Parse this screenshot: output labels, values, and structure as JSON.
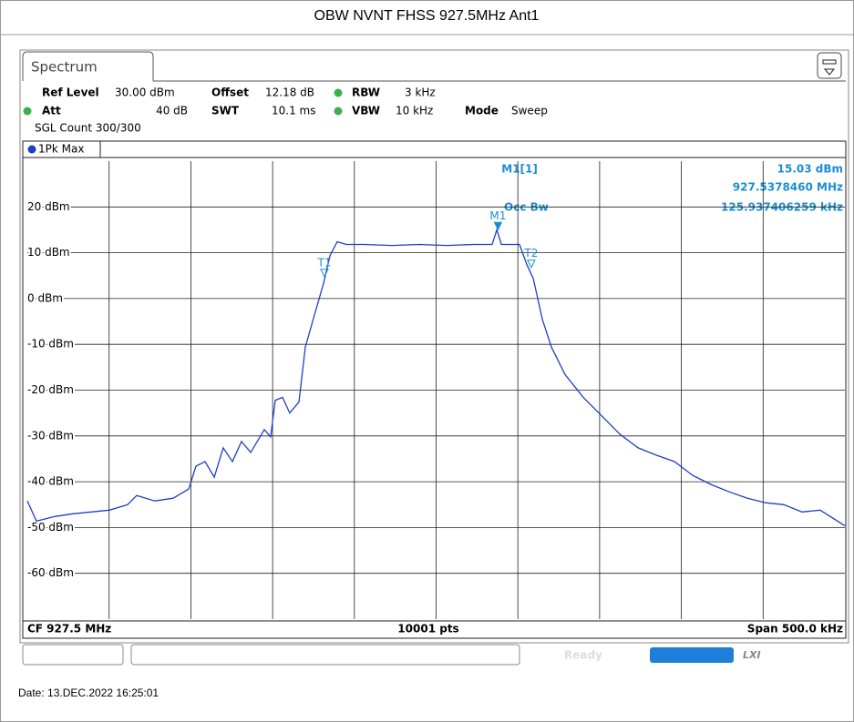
{
  "header": {
    "title": "OBW NVNT FHSS 927.5MHz Ant1"
  },
  "tab": "Spectrum",
  "settings": {
    "ref_level_label": "Ref Level",
    "ref_level": "30.00 dBm",
    "offset_label": "Offset",
    "offset": "12.18 dB",
    "rbw_label": "RBW",
    "rbw": "3 kHz",
    "att_label": "Att",
    "att": "40 dB",
    "swt_label": "SWT",
    "swt": "10.1 ms",
    "vbw_label": "VBW",
    "vbw": "10 kHz",
    "mode_label": "Mode",
    "mode": "Sweep",
    "count": "SGL Count 300/300"
  },
  "trace_label": "1Pk Max",
  "readout": {
    "marker": "M1[1]",
    "level": "15.03 dBm",
    "frequency": "927.5378460 MHz",
    "occ_label": "Occ Bw",
    "occ": "125.937406259 kHz"
  },
  "chart_data": {
    "type": "line",
    "xlim": [
      927.25,
      927.75
    ],
    "ylim": [
      -70,
      30
    ],
    "yticks": [
      {
        "value": 20,
        "label": "20 dBm"
      },
      {
        "value": 10,
        "label": "10 dBm"
      },
      {
        "value": 0,
        "label": "0 dBm"
      },
      {
        "value": -10,
        "label": "-10 dBm"
      },
      {
        "value": -20,
        "label": "-20 dBm"
      },
      {
        "value": -30,
        "label": "-30 dBm"
      },
      {
        "value": -40,
        "label": "-40 dBm"
      },
      {
        "value": -50,
        "label": "-50 dBm"
      },
      {
        "value": -60,
        "label": "-60 dBm"
      }
    ],
    "grid": true,
    "x": [
      927.25,
      927.2556,
      927.2667,
      927.2779,
      927.289,
      927.3002,
      927.3113,
      927.3169,
      927.328,
      927.3392,
      927.3487,
      927.3531,
      927.3587,
      927.3643,
      927.3698,
      927.3754,
      927.381,
      927.3866,
      927.3949,
      927.3988,
      927.4016,
      927.4061,
      927.4105,
      927.4161,
      927.42,
      927.4256,
      927.4312,
      927.4351,
      927.4395,
      927.4451,
      927.4562,
      927.473,
      927.4897,
      927.5064,
      927.5231,
      927.5343,
      927.5371,
      927.5399,
      927.551,
      927.5555,
      927.5594,
      927.565,
      927.5705,
      927.5789,
      927.59,
      927.6012,
      927.6123,
      927.6235,
      927.6346,
      927.6458,
      927.6569,
      927.6681,
      927.6792,
      927.6904,
      927.7015,
      927.7127,
      927.7238,
      927.7349,
      927.75
    ],
    "series": [
      {
        "color": "#1f3fc4",
        "values": [
          -44.2,
          -48.6,
          -47.6,
          -47,
          -46.6,
          -46.2,
          -45,
          -43,
          -44.2,
          -43.6,
          -41.6,
          -36.6,
          -35.6,
          -39,
          -32.6,
          -35.6,
          -31.2,
          -33.6,
          -28.6,
          -30.2,
          -22.2,
          -21.6,
          -25,
          -22.6,
          -10.6,
          -3.6,
          3.4,
          9.4,
          12.4,
          11.8,
          11.8,
          11.6,
          11.8,
          11.6,
          11.8,
          11.8,
          15,
          11.8,
          11.8,
          7.4,
          4.4,
          -4.6,
          -10.6,
          -16.6,
          -21.6,
          -25.6,
          -29.6,
          -32.6,
          -34.2,
          -35.6,
          -38.6,
          -40.6,
          -42.2,
          -43.6,
          -44.6,
          -45,
          -46.6,
          -46.2,
          -49.6
        ]
      }
    ],
    "markers": [
      {
        "name": "M1",
        "x": 927.537846,
        "value": 15.03,
        "color": "#1a8fd0"
      },
      {
        "name": "T1",
        "x": 927.4317,
        "value": 4.8,
        "color": "#1a8fd0"
      },
      {
        "name": "T2",
        "x": 927.5582,
        "value": 6.8,
        "color": "#1a8fd0"
      }
    ]
  },
  "bottom": {
    "center": "CF 927.5 MHz",
    "points": "10001 pts",
    "span": "Span 500.0 kHz"
  },
  "status": {
    "state": "Ready",
    "lxi": "LXI"
  },
  "footer": {
    "date": "Date: 13.DEC.2022  16:25:01"
  }
}
